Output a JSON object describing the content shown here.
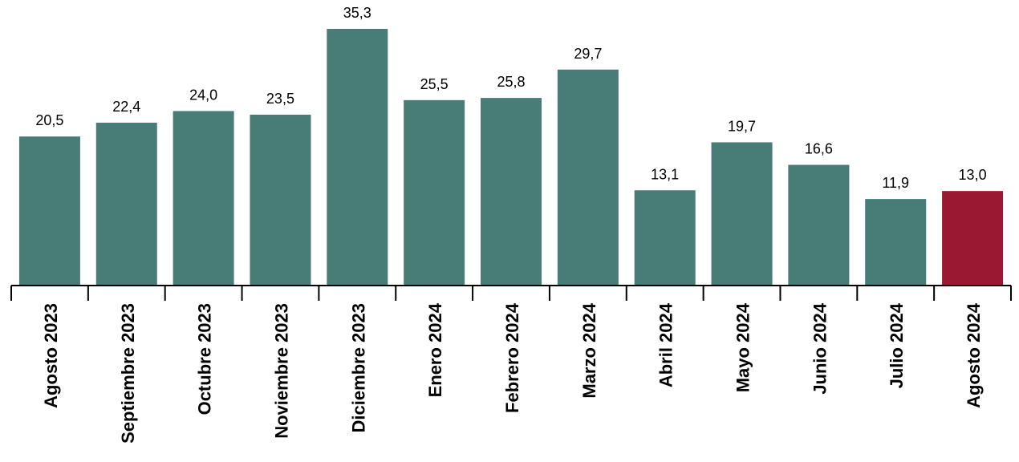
{
  "chart_data": {
    "type": "bar",
    "categories": [
      "Agosto 2023",
      "Septiembre 2023",
      "Octubre 2023",
      "Noviembre 2023",
      "Diciembre 2023",
      "Enero 2024",
      "Febrero 2024",
      "Marzo 2024",
      "Abril 2024",
      "Mayo 2024",
      "Junio 2024",
      "Julio 2024",
      "Agosto 2024"
    ],
    "values": [
      20.5,
      22.4,
      24.0,
      23.5,
      35.3,
      25.5,
      25.8,
      29.7,
      13.1,
      19.7,
      16.6,
      11.9,
      13.0
    ],
    "value_labels": [
      "20,5",
      "22,4",
      "24,0",
      "23,5",
      "35,3",
      "25,5",
      "25,8",
      "29,7",
      "13,1",
      "19,7",
      "16,6",
      "11,9",
      "13,0"
    ],
    "title": "",
    "xlabel": "",
    "ylabel": "",
    "ylim": [
      0,
      35.3
    ],
    "grid": false,
    "legend": "none",
    "colors": {
      "default_bar": "#477d76",
      "highlight_bar": "#9b1832"
    },
    "highlight_index": 12
  }
}
